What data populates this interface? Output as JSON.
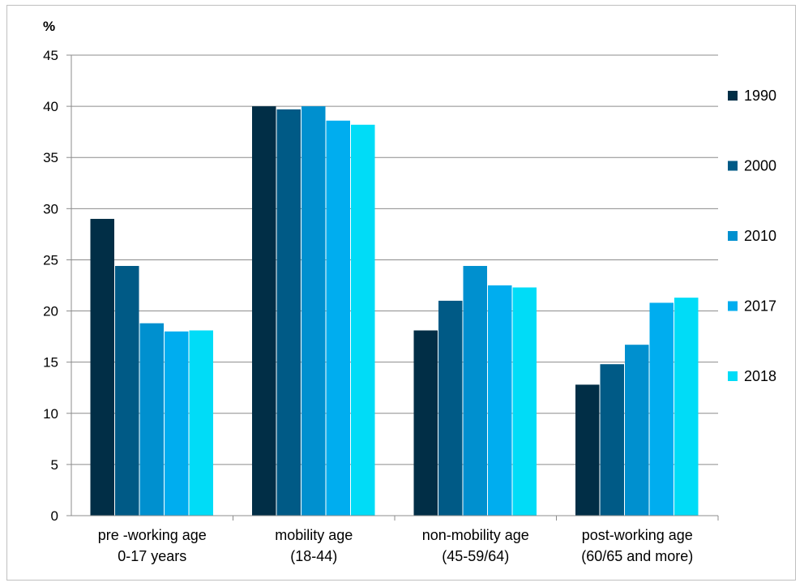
{
  "chart_data": {
    "type": "bar",
    "title": "",
    "ylabel": "%",
    "xlabel": "",
    "ylim": [
      0,
      45
    ],
    "yticks": [
      0,
      5,
      10,
      15,
      20,
      25,
      30,
      35,
      40,
      45
    ],
    "grid": true,
    "legend_position": "right",
    "categories": [
      [
        "pre -working age",
        "0-17 years"
      ],
      [
        "mobility age",
        "(18-44)"
      ],
      [
        "non-mobility age",
        "(45-59/64)"
      ],
      [
        "post-working age",
        "(60/65 and more)"
      ]
    ],
    "series": [
      {
        "name": "1990",
        "color": "#012e46",
        "values": [
          29.0,
          40.0,
          18.1,
          12.8
        ]
      },
      {
        "name": "2000",
        "color": "#005a86",
        "values": [
          24.4,
          39.7,
          21.0,
          14.8
        ]
      },
      {
        "name": "2010",
        "color": "#0090cf",
        "values": [
          18.8,
          40.0,
          24.4,
          16.7
        ]
      },
      {
        "name": "2017",
        "color": "#00adef",
        "values": [
          18.0,
          38.6,
          22.5,
          20.8
        ]
      },
      {
        "name": "2018",
        "color": "#00dcf7",
        "values": [
          18.1,
          38.2,
          22.3,
          21.3
        ]
      }
    ]
  }
}
